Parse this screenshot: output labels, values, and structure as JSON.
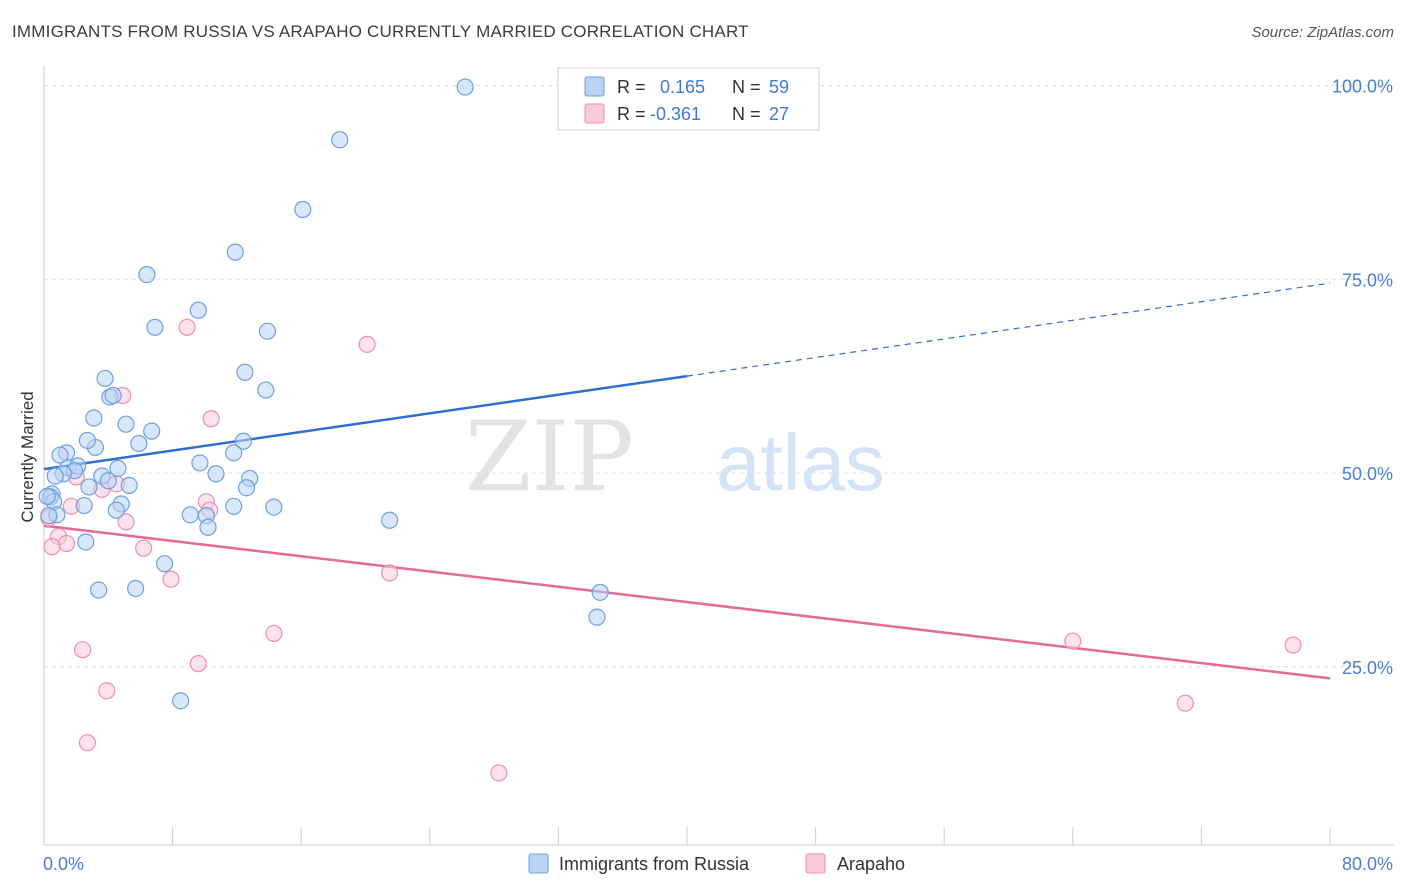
{
  "header": {
    "title": "IMMIGRANTS FROM RUSSIA VS ARAPAHO CURRENTLY MARRIED CORRELATION CHART",
    "source": "Source: ZipAtlas.com"
  },
  "watermark": {
    "zip": "ZIP",
    "atlas": "atlas"
  },
  "legend_box": {
    "rows": [
      {
        "r_label": "R =",
        "r_value": "0.165",
        "n_label": "N =",
        "n_value": "59",
        "color": "#7fb0f0"
      },
      {
        "r_label": "R =",
        "r_value": "-0.361",
        "n_label": "N =",
        "n_value": "27",
        "color": "#f4a7bf"
      }
    ]
  },
  "bottom_legend": {
    "items": [
      "Immigrants from Russia",
      "Arapaho"
    ]
  },
  "axes": {
    "ylabel": "Currently Married",
    "x_ticks": [
      "0.0%",
      "80.0%"
    ],
    "y_ticks": [
      "100.0%",
      "75.0%",
      "50.0%",
      "25.0%"
    ]
  },
  "colors": {
    "blue_fill": "#b9d3f5",
    "blue_stroke": "#6ea0e0",
    "blue_line": "#2f6fd1",
    "pink_fill": "#f9cbd9",
    "pink_stroke": "#ef8fae",
    "pink_line": "#e46b97",
    "tick_label": "#4a7fd0",
    "grid": "#dcdcdc"
  },
  "chart_data": {
    "type": "scatter",
    "title": "IMMIGRANTS FROM RUSSIA VS ARAPAHO CURRENTLY MARRIED CORRELATION CHART",
    "xlabel": "",
    "ylabel": "Currently Married",
    "xlim": [
      0,
      80
    ],
    "ylim": [
      2,
      102
    ],
    "y_grid": [
      25,
      50,
      75,
      100
    ],
    "grid": true,
    "legend_position": "top-center",
    "series": [
      {
        "name": "Immigrants from Russia",
        "r": 0.165,
        "n": 59,
        "trend": {
          "x": [
            0,
            40
          ],
          "y": [
            50.5,
            62.5
          ],
          "dashed_extension_to_x": 80,
          "dashed_end_y": 74.5
        },
        "points": [
          [
            26.2,
            99.8
          ],
          [
            18.4,
            93.0
          ],
          [
            16.1,
            84.0
          ],
          [
            11.9,
            78.5
          ],
          [
            6.4,
            75.6
          ],
          [
            9.6,
            71.0
          ],
          [
            6.9,
            68.8
          ],
          [
            13.9,
            68.3
          ],
          [
            3.8,
            62.2
          ],
          [
            12.5,
            63.0
          ],
          [
            13.8,
            60.7
          ],
          [
            4.1,
            59.8
          ],
          [
            4.3,
            60.0
          ],
          [
            3.1,
            57.1
          ],
          [
            5.1,
            56.3
          ],
          [
            6.7,
            55.4
          ],
          [
            5.9,
            53.8
          ],
          [
            3.2,
            53.3
          ],
          [
            2.7,
            54.2
          ],
          [
            1.4,
            52.6
          ],
          [
            1.0,
            52.3
          ],
          [
            12.4,
            54.1
          ],
          [
            11.8,
            52.6
          ],
          [
            9.7,
            51.3
          ],
          [
            1.5,
            50.7
          ],
          [
            2.1,
            50.9
          ],
          [
            1.9,
            50.3
          ],
          [
            1.2,
            49.9
          ],
          [
            4.6,
            50.6
          ],
          [
            3.6,
            49.6
          ],
          [
            4.0,
            49.0
          ],
          [
            0.7,
            49.6
          ],
          [
            2.8,
            48.2
          ],
          [
            5.3,
            48.4
          ],
          [
            12.8,
            49.3
          ],
          [
            12.6,
            48.1
          ],
          [
            10.7,
            49.9
          ],
          [
            0.5,
            47.3
          ],
          [
            0.4,
            46.9
          ],
          [
            0.6,
            46.3
          ],
          [
            2.5,
            45.8
          ],
          [
            4.8,
            46.0
          ],
          [
            4.5,
            45.2
          ],
          [
            11.8,
            45.7
          ],
          [
            14.3,
            45.6
          ],
          [
            0.8,
            44.6
          ],
          [
            0.3,
            44.5
          ],
          [
            9.1,
            44.6
          ],
          [
            10.1,
            44.5
          ],
          [
            10.2,
            43.0
          ],
          [
            21.5,
            43.9
          ],
          [
            2.6,
            41.1
          ],
          [
            7.5,
            38.3
          ],
          [
            3.4,
            34.9
          ],
          [
            5.7,
            35.1
          ],
          [
            34.6,
            34.6
          ],
          [
            34.4,
            31.4
          ],
          [
            8.5,
            20.6
          ],
          [
            0.2,
            47.0
          ]
        ]
      },
      {
        "name": "Arapaho",
        "r": -0.361,
        "n": 27,
        "trend": {
          "x": [
            0,
            80
          ],
          "y": [
            43.2,
            23.5
          ]
        },
        "points": [
          [
            8.9,
            68.8
          ],
          [
            20.1,
            66.6
          ],
          [
            4.9,
            60.0
          ],
          [
            10.4,
            57.0
          ],
          [
            2.0,
            49.5
          ],
          [
            4.5,
            48.6
          ],
          [
            3.6,
            47.9
          ],
          [
            10.1,
            46.3
          ],
          [
            1.7,
            45.7
          ],
          [
            10.3,
            45.2
          ],
          [
            5.1,
            43.7
          ],
          [
            0.9,
            41.8
          ],
          [
            1.4,
            40.9
          ],
          [
            0.5,
            40.5
          ],
          [
            6.2,
            40.3
          ],
          [
            7.9,
            36.3
          ],
          [
            21.5,
            37.1
          ],
          [
            14.3,
            29.3
          ],
          [
            2.4,
            27.2
          ],
          [
            9.6,
            25.4
          ],
          [
            64.0,
            28.3
          ],
          [
            77.7,
            27.8
          ],
          [
            71.0,
            20.3
          ],
          [
            3.9,
            21.9
          ],
          [
            2.7,
            15.2
          ],
          [
            28.3,
            11.3
          ],
          [
            0.3,
            44.2
          ]
        ]
      }
    ]
  }
}
